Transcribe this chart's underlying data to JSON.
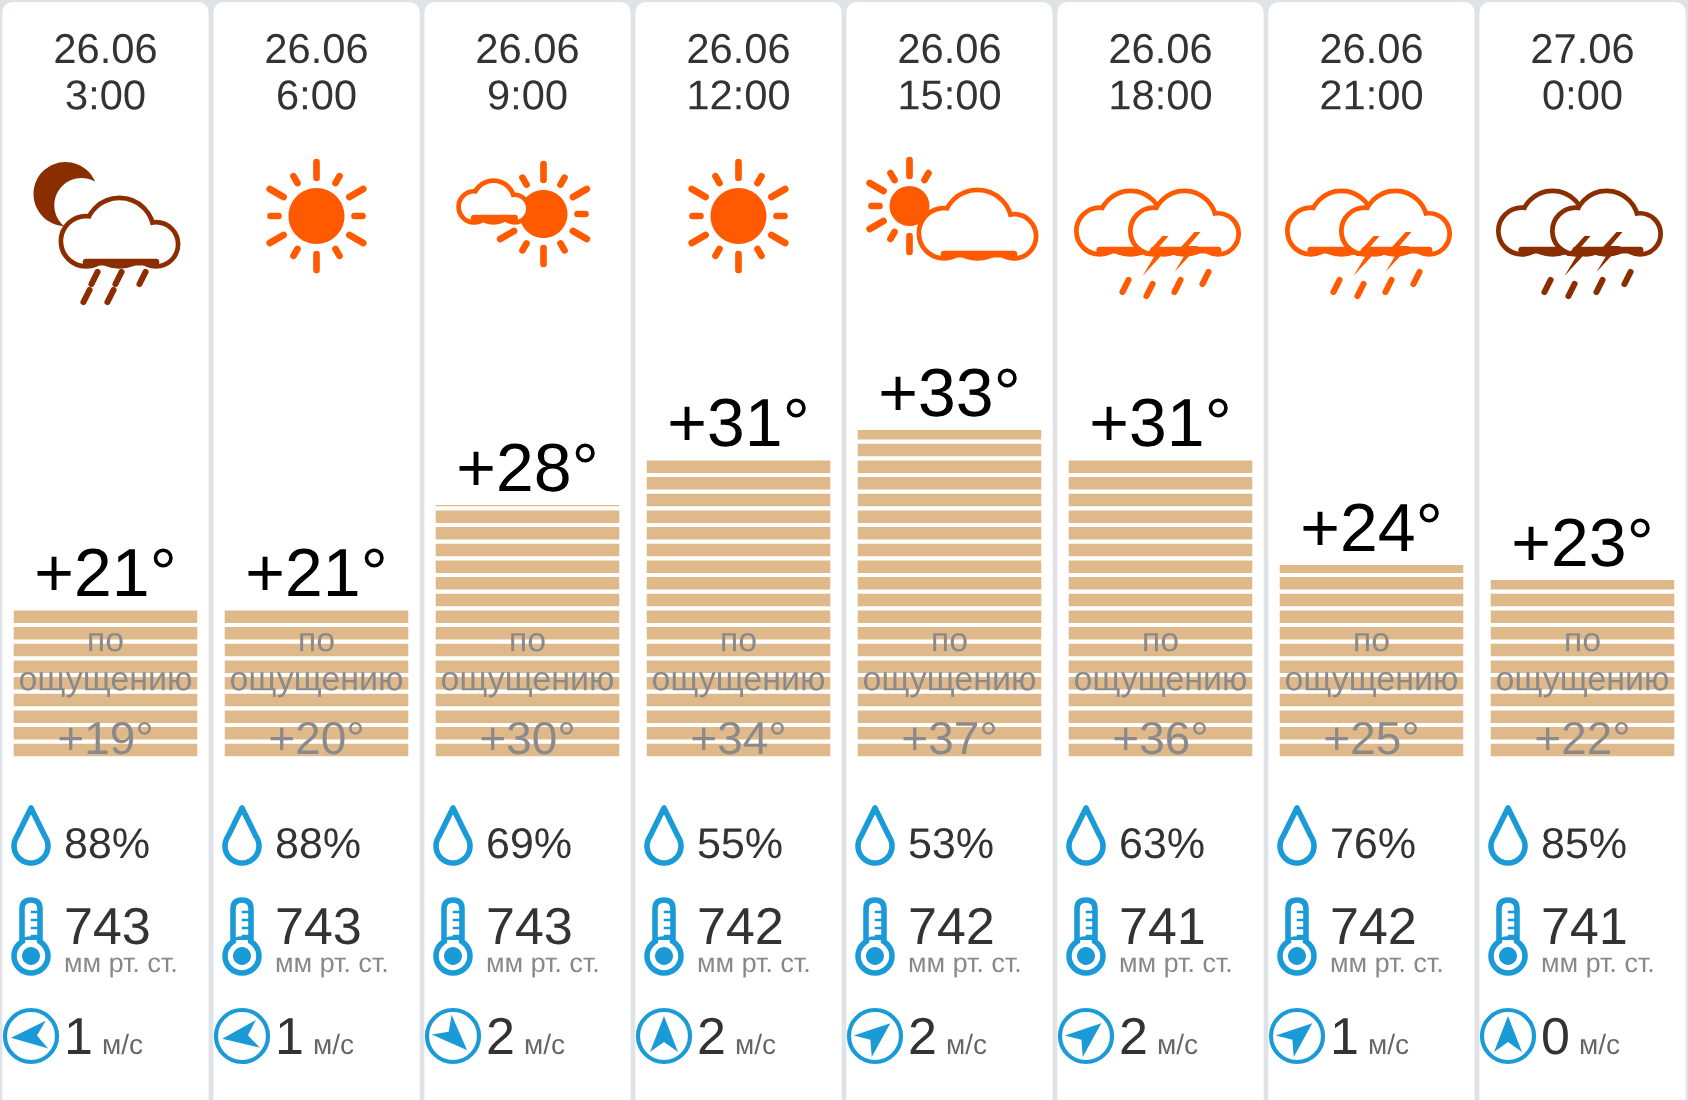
{
  "chart_data": {
    "type": "bar",
    "categories": [
      "26.06\n3:00",
      "26.06\n6:00",
      "26.06\n9:00",
      "26.06\n12:00",
      "26.06\n15:00",
      "26.06\n18:00",
      "26.06\n21:00",
      "27.06\n0:00"
    ],
    "values": [
      21,
      21,
      28,
      31,
      33,
      31,
      24,
      23
    ],
    "value_labels": [
      "+21°",
      "+21°",
      "+28°",
      "+31°",
      "+33°",
      "+31°",
      "+24°",
      "+23°"
    ],
    "color": "#e0b98b",
    "ylim": [
      11,
      33
    ],
    "tick_labels": "x",
    "annotations": [
      "по\nощущению",
      "+19°",
      "88%",
      "743",
      "мм рт. ст.",
      "1",
      "м/с",
      "по\nощущению",
      "+20°",
      "88%",
      "743",
      "мм рт. ст.",
      "1",
      "м/с",
      "по\nощущению",
      "+30°",
      "69%",
      "743",
      "мм рт. ст.",
      "2",
      "м/с",
      "по\nощущению",
      "+34°",
      "55%",
      "742",
      "мм рт. ст.",
      "2",
      "м/с",
      "по\nощущению",
      "+37°",
      "53%",
      "742",
      "мм рт. ст.",
      "2",
      "м/с",
      "по\nощущению",
      "+36°",
      "63%",
      "741",
      "мм рт. ст.",
      "2",
      "м/с",
      "по\nощущению",
      "+25°",
      "76%",
      "742",
      "мм рт. ст.",
      "1",
      "м/с",
      "по\nощущению",
      "+22°",
      "85%",
      "741",
      "мм рт. ст.",
      "0",
      "м/с"
    ]
  }
}
